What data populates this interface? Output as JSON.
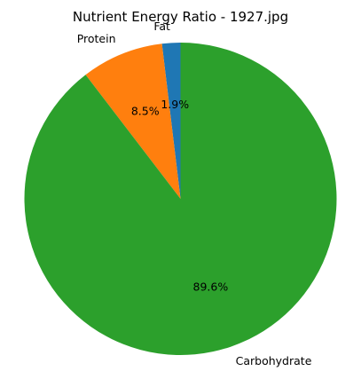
{
  "chart_data": {
    "type": "pie",
    "title": "Nutrient Energy Ratio - 1927.jpg",
    "start_angle_deg": 90,
    "direction": "counterclockwise",
    "slices": [
      {
        "label": "Fat",
        "value": 1.9,
        "pct_label": "1.9%",
        "color": "#1f77b4"
      },
      {
        "label": "Protein",
        "value": 8.5,
        "pct_label": "8.5%",
        "color": "#ff7f0e"
      },
      {
        "label": "Carbohydrate",
        "value": 89.6,
        "pct_label": "89.6%",
        "color": "#2ca02c"
      }
    ]
  }
}
